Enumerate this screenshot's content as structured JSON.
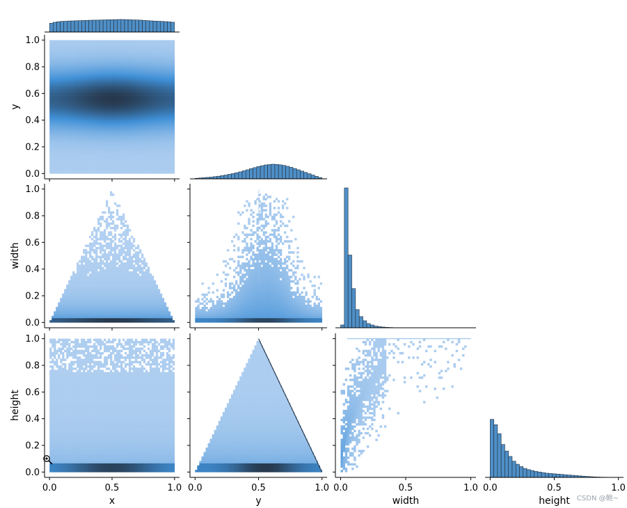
{
  "chart_data": {
    "type": "pairplot",
    "variables": [
      "x",
      "y",
      "width",
      "height"
    ],
    "corner": true,
    "colors": {
      "hist_fill": "#4f8fc7",
      "hist_edge": "#1f2d3a",
      "density_low": "#b7d3f2",
      "density_mid": "#3f8fd6",
      "density_high": "#26384d"
    },
    "ticks": [
      "0.0",
      "0.2",
      "0.4",
      "0.6",
      "0.8",
      "1.0"
    ],
    "x_ticks": [
      "0.0",
      "0.5",
      "1.0"
    ],
    "diagonal_hist": {
      "x": {
        "range": [
          0,
          1
        ],
        "counts": [
          0.7,
          0.78,
          0.82,
          0.85,
          0.86,
          0.88,
          0.89,
          0.9,
          0.91,
          0.92,
          0.93,
          0.94,
          0.95,
          0.95,
          0.96,
          0.97,
          0.98,
          0.98,
          0.99,
          1.0,
          1.0,
          0.99,
          0.98,
          0.97,
          0.96,
          0.95,
          0.93,
          0.91,
          0.89,
          0.87,
          0.86,
          0.85,
          0.83,
          0.81,
          0.78
        ]
      },
      "y": {
        "range": [
          0,
          1
        ],
        "counts": [
          0.04,
          0.06,
          0.08,
          0.1,
          0.12,
          0.15,
          0.18,
          0.22,
          0.26,
          0.31,
          0.36,
          0.42,
          0.48,
          0.55,
          0.62,
          0.7,
          0.77,
          0.84,
          0.9,
          0.95,
          0.98,
          1.0,
          0.99,
          0.96,
          0.92,
          0.86,
          0.79,
          0.71,
          0.62,
          0.53,
          0.44,
          0.35,
          0.26,
          0.17,
          0.09
        ]
      },
      "width": {
        "range": [
          0,
          1
        ],
        "counts": [
          0.02,
          1.0,
          0.52,
          0.28,
          0.13,
          0.08,
          0.05,
          0.03,
          0.02,
          0.012,
          0.008,
          0.005,
          0.003,
          0.002,
          0.001,
          0.001,
          0,
          0,
          0,
          0,
          0,
          0,
          0,
          0,
          0,
          0,
          0,
          0,
          0,
          0,
          0,
          0,
          0,
          0,
          0
        ]
      },
      "height": {
        "range": [
          0,
          1
        ],
        "counts": [
          0.97,
          0.88,
          0.73,
          0.55,
          0.44,
          0.35,
          0.27,
          0.22,
          0.18,
          0.15,
          0.13,
          0.115,
          0.1,
          0.09,
          0.08,
          0.07,
          0.065,
          0.06,
          0.055,
          0.05,
          0.045,
          0.04,
          0.035,
          0.03,
          0.025,
          0.02,
          0.016,
          0.012,
          0.008,
          0.006,
          0.004,
          0.003,
          0.002,
          0.001,
          0.001
        ]
      }
    },
    "scatter_panels": [
      {
        "row": "y",
        "col": "x",
        "pattern": "gaussian_band"
      },
      {
        "row": "width",
        "col": "x",
        "pattern": "triangle"
      },
      {
        "row": "width",
        "col": "y",
        "pattern": "skew_cloud"
      },
      {
        "row": "height",
        "col": "x",
        "pattern": "uniform_fill"
      },
      {
        "row": "height",
        "col": "y",
        "pattern": "triangle_sharp"
      },
      {
        "row": "height",
        "col": "width",
        "pattern": "power_cloud"
      }
    ]
  },
  "watermark": "CSDN @鲍~"
}
